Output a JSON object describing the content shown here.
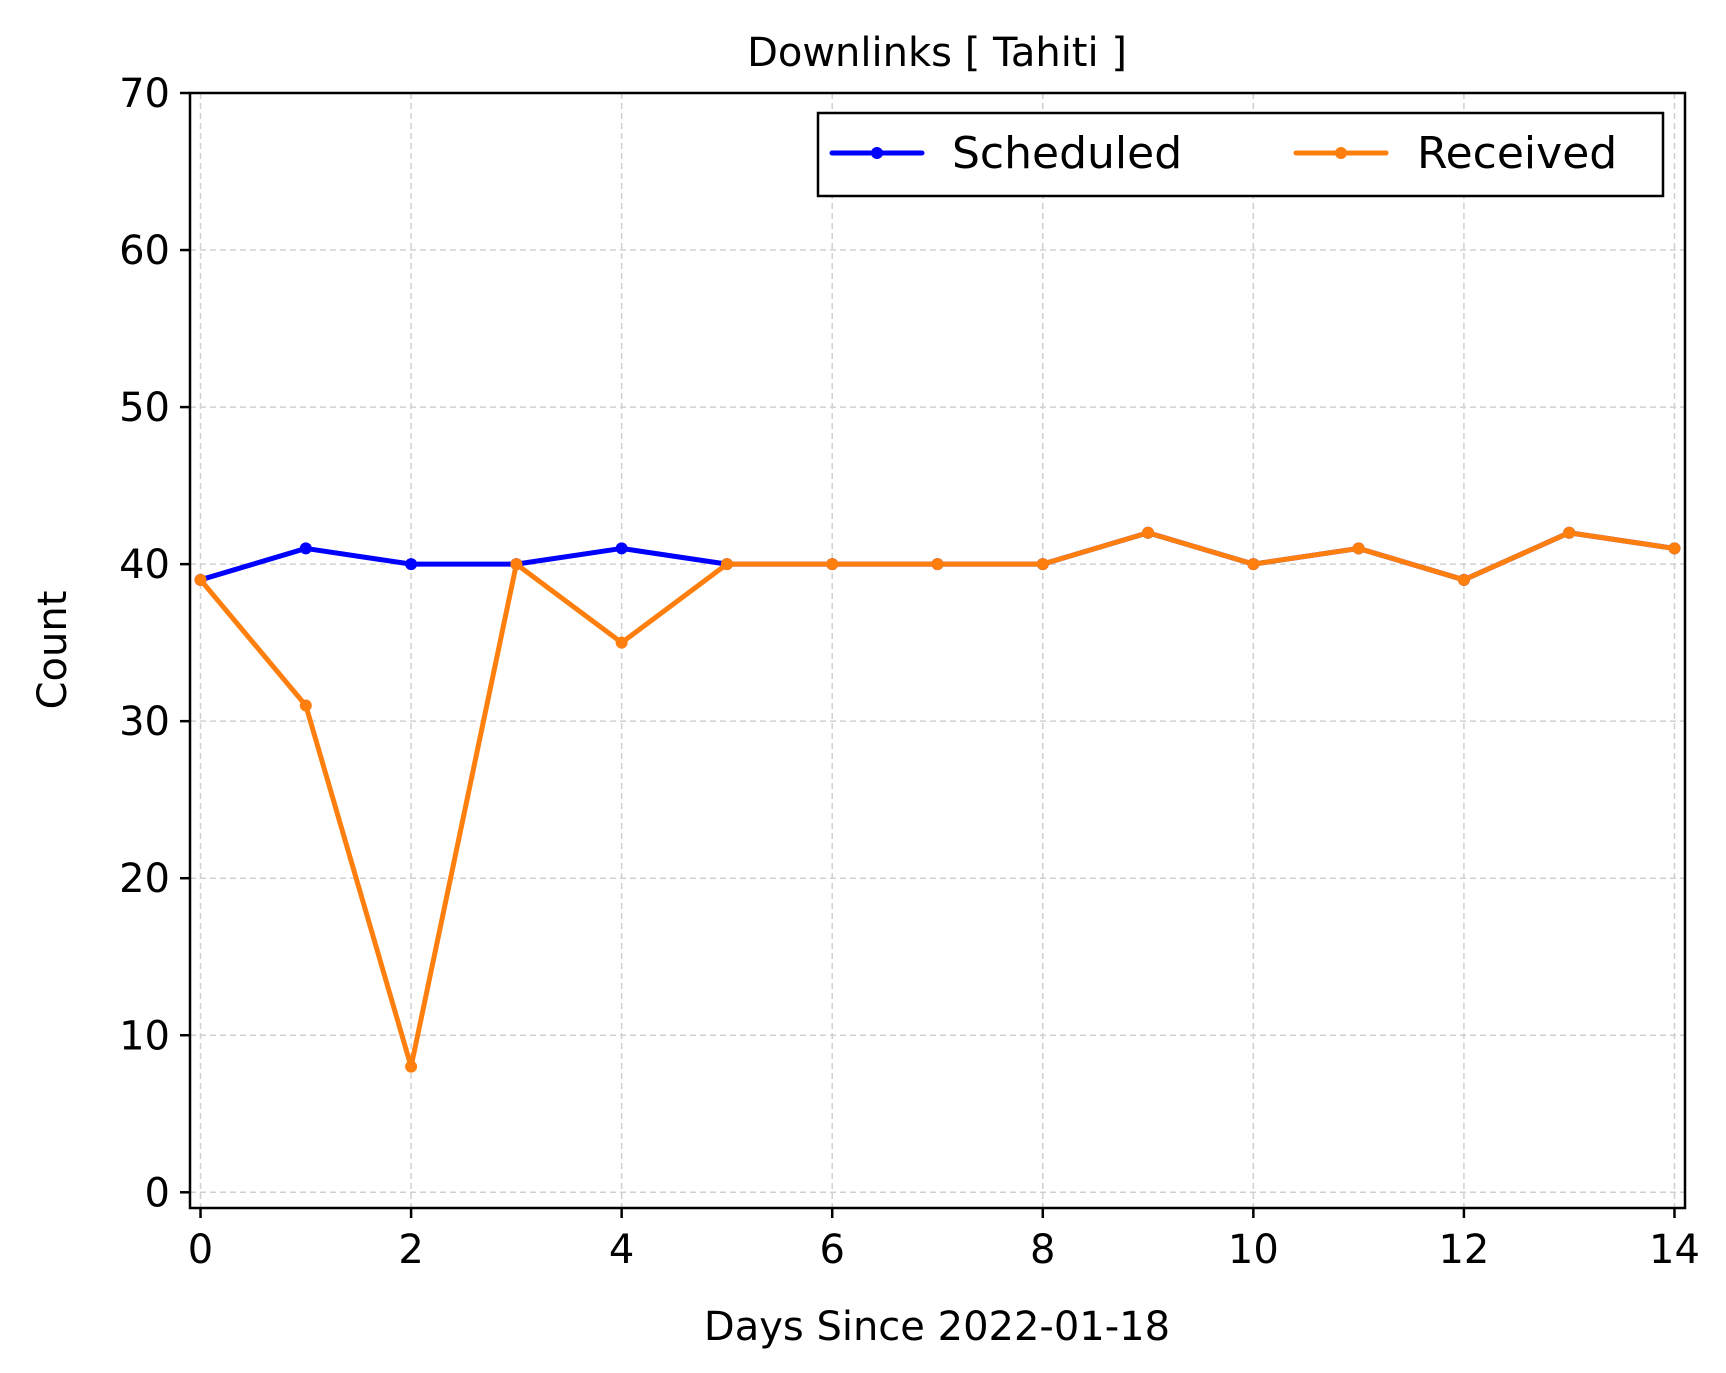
{
  "chart_data": {
    "type": "line",
    "title": "Downlinks [ Tahiti ]",
    "xlabel": "Days Since 2022-01-18",
    "ylabel": "Count",
    "xlim": [
      -0.1,
      14.1
    ],
    "ylim": [
      -1,
      70
    ],
    "xticks": [
      0,
      2,
      4,
      6,
      8,
      10,
      12,
      14
    ],
    "yticks": [
      0,
      10,
      20,
      30,
      40,
      50,
      60,
      70
    ],
    "grid": true,
    "legend": {
      "placement": "top-right",
      "columns": 2
    },
    "x": [
      0,
      1,
      2,
      3,
      4,
      5,
      6,
      7,
      8,
      9,
      10,
      11,
      12,
      13,
      14
    ],
    "series": [
      {
        "name": "Scheduled",
        "color": "#0000ff",
        "values": [
          39,
          41,
          40,
          40,
          41,
          40,
          40,
          40,
          40,
          42,
          40,
          41,
          39,
          42,
          41
        ]
      },
      {
        "name": "Received",
        "color": "#ff7f0e",
        "values": [
          39,
          31,
          8,
          40,
          35,
          40,
          40,
          40,
          40,
          42,
          40,
          41,
          39,
          42,
          41
        ]
      }
    ]
  }
}
